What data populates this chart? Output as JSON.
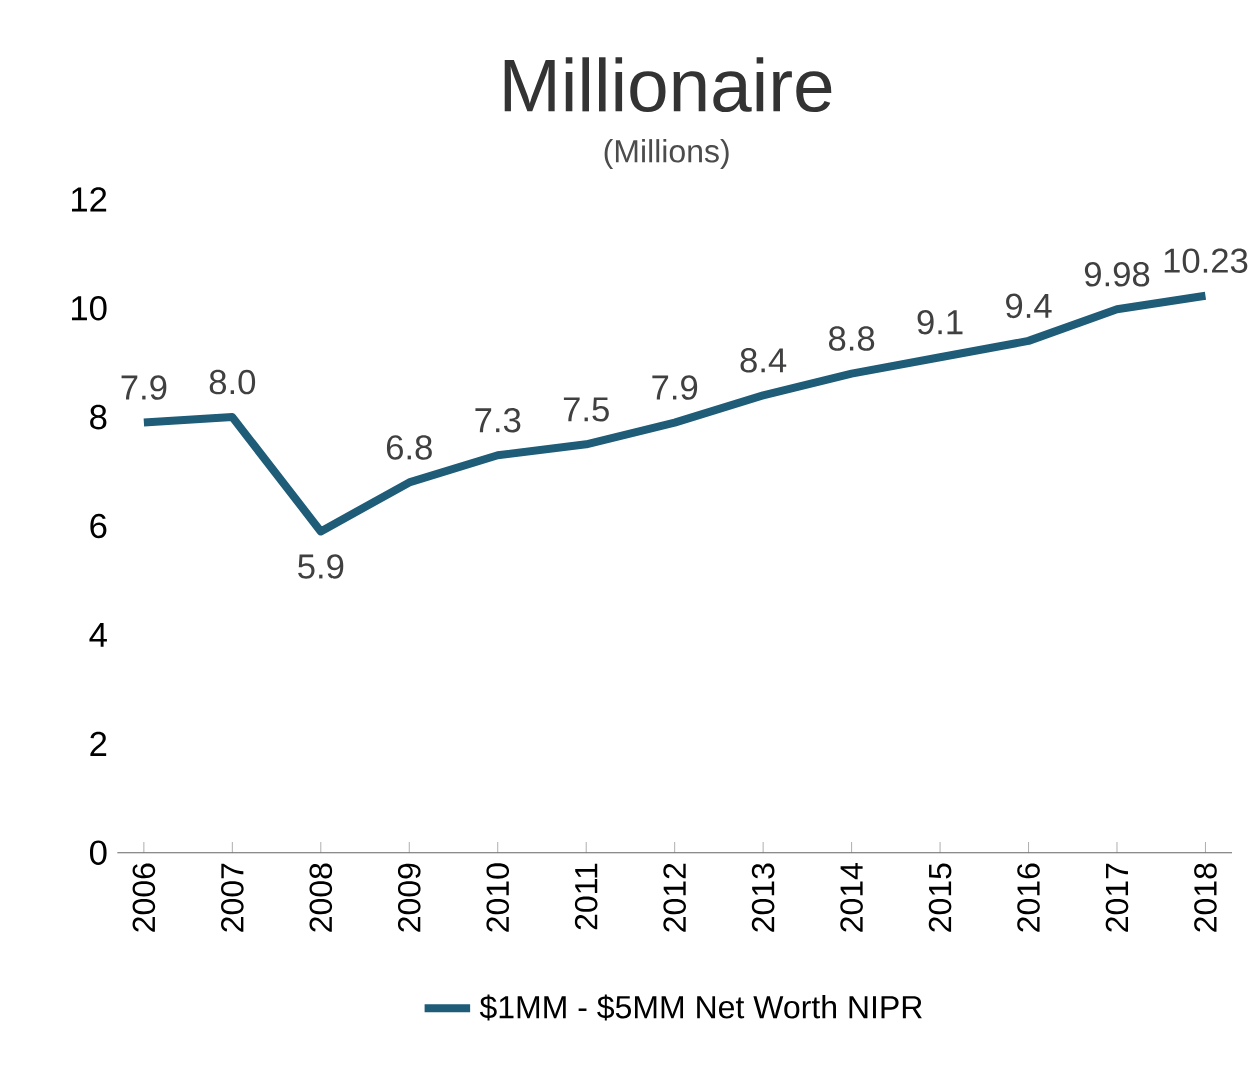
{
  "chart_data": {
    "type": "line",
    "title": "Millionaire",
    "subtitle": "(Millions)",
    "categories": [
      "2006",
      "2007",
      "2008",
      "2009",
      "2010",
      "2011",
      "2012",
      "2013",
      "2014",
      "2015",
      "2016",
      "2017",
      "2018"
    ],
    "series": [
      {
        "name": "$1MM - $5MM Net Worth NIPR",
        "color": "#1e5c78",
        "values": [
          7.9,
          8.0,
          5.9,
          6.8,
          7.3,
          7.5,
          7.9,
          8.4,
          8.8,
          9.1,
          9.4,
          9.98,
          10.23
        ],
        "value_labels": [
          "7.9",
          "8.0",
          "5.9",
          "6.8",
          "7.3",
          "7.5",
          "7.9",
          "8.4",
          "8.8",
          "9.1",
          "9.4",
          "9.98",
          "10.23"
        ]
      }
    ],
    "ylim": [
      0,
      12
    ],
    "yticks": [
      0,
      2,
      4,
      6,
      8,
      10,
      12
    ],
    "grid": false,
    "legend": "bottom",
    "marker": "none",
    "line_style": "solid"
  }
}
